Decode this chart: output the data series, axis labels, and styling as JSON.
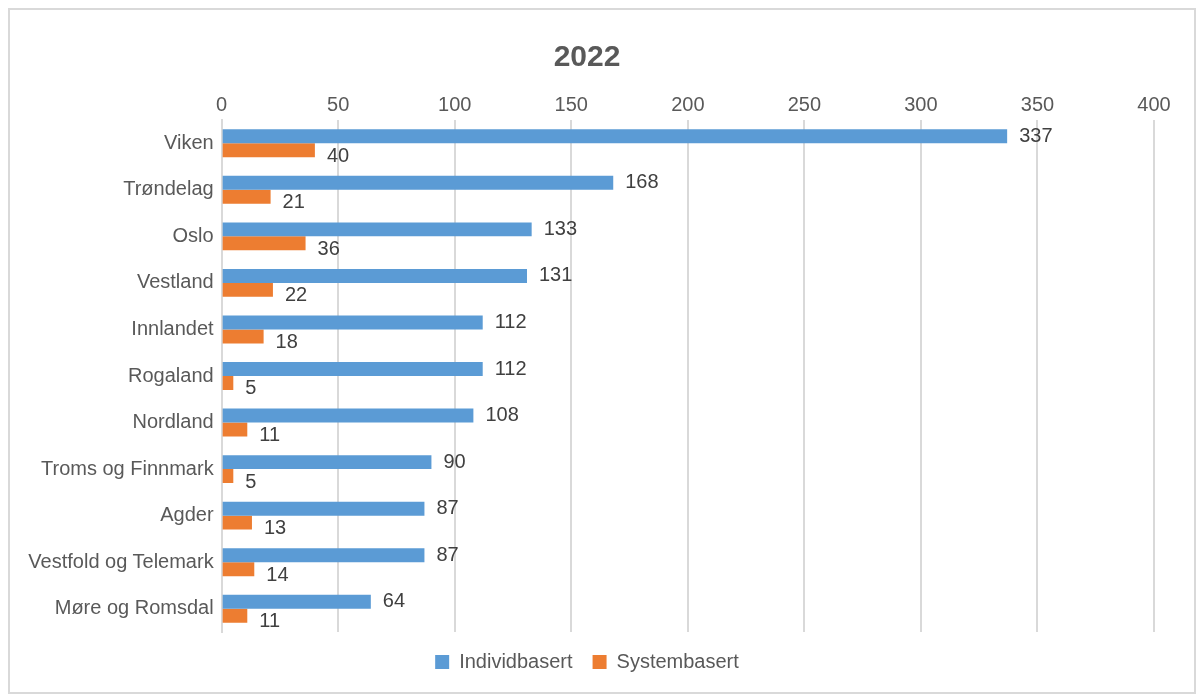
{
  "chart_data": {
    "type": "bar",
    "orientation": "horizontal",
    "title": "2022",
    "categories": [
      "Viken",
      "Trøndelag",
      "Oslo",
      "Vestland",
      "Innlandet",
      "Rogaland",
      "Nordland",
      "Troms og Finnmark",
      "Agder",
      "Vestfold og Telemark",
      "Møre og Romsdal"
    ],
    "series": [
      {
        "name": "Individbasert",
        "color": "#5b9bd5",
        "values": [
          337,
          168,
          133,
          131,
          112,
          112,
          108,
          90,
          87,
          87,
          64
        ]
      },
      {
        "name": "Systembasert",
        "color": "#ed7d31",
        "values": [
          40,
          21,
          36,
          22,
          18,
          5,
          11,
          5,
          13,
          14,
          11
        ]
      }
    ],
    "xlim": [
      0,
      400
    ],
    "xticks": [
      0,
      50,
      100,
      150,
      200,
      250,
      300,
      350,
      400
    ],
    "grid": "x",
    "legend": "bottom",
    "data_labels": true
  }
}
